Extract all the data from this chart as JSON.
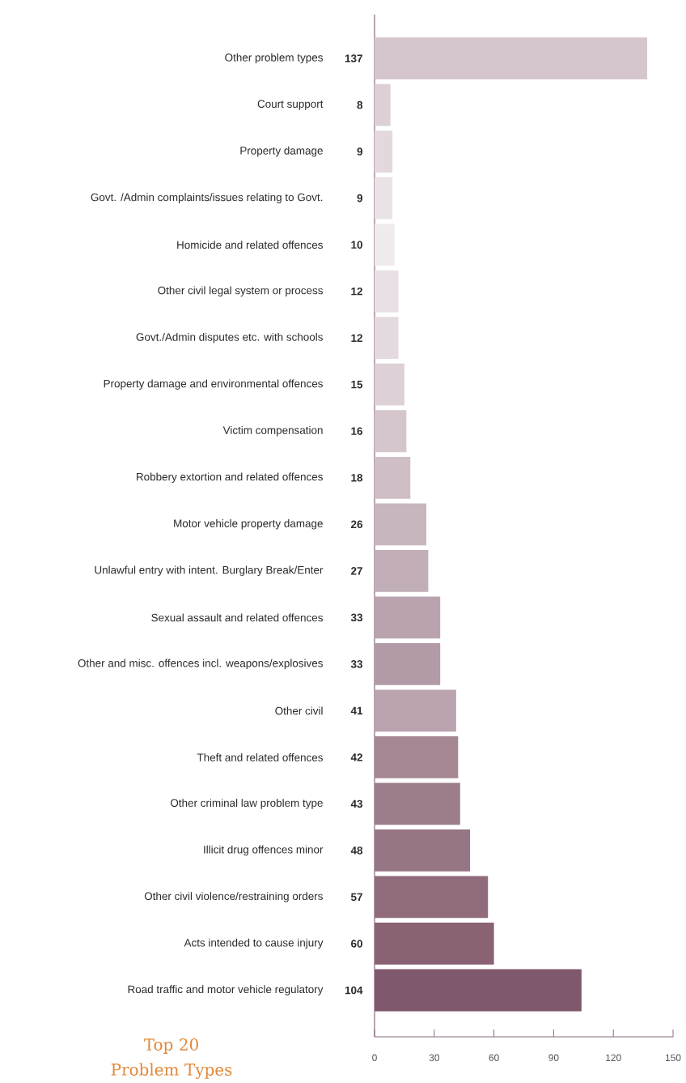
{
  "chart_data": {
    "type": "bar",
    "orientation": "horizontal",
    "title": "Top 20 Problem Types",
    "categories": [
      "Other problem types",
      "Court support",
      "Property damage",
      "Govt. /Admin complaints/issues relating to Govt.",
      "Homicide and related offences",
      "Other civil legal system or process",
      "Govt./Admin disputes etc. with schools",
      "Property damage and environmental offences",
      "Victim compensation",
      "Robbery extortion and related offences",
      "Motor vehicle property damage",
      "Unlawful entry with intent. Burglary Break/Enter",
      "Sexual assault and related offences",
      "Other and misc. offences incl. weapons/explosives",
      "Other civil",
      "Theft and related offences",
      "Other criminal law problem type",
      "Illicit drug offences minor",
      "Other civil violence/restraining orders",
      "Acts intended to cause injury",
      "Road traffic and motor vehicle regulatory"
    ],
    "values": [
      137,
      8,
      9,
      9,
      10,
      12,
      12,
      15,
      16,
      18,
      26,
      27,
      33,
      33,
      41,
      42,
      43,
      48,
      57,
      60,
      104
    ],
    "value_labels": [
      "137",
      "8",
      "9",
      "9",
      "10",
      "12",
      "12",
      "15",
      "16",
      "18",
      "26",
      "27",
      "33",
      "33",
      "41",
      "42",
      "43",
      "48",
      "57",
      "60",
      "104"
    ],
    "colors": [
      "#d5c6ce",
      "#ddcfd6",
      "#e3d8de",
      "#e9e2e6",
      "#efeaec",
      "#e8e0e5",
      "#e4d9df",
      "#ddd0d7",
      "#d5c6cd",
      "#cfbec6",
      "#c7b6be",
      "#c2aeb8",
      "#baa3af",
      "#b29aa6",
      "#bba3af",
      "#a48793",
      "#9c7d8b",
      "#967584",
      "#8f6b7c",
      "#896273",
      "#80586d"
    ],
    "xlim": [
      0,
      150
    ],
    "xticks": [
      0,
      30,
      60,
      90,
      120,
      150
    ]
  }
}
